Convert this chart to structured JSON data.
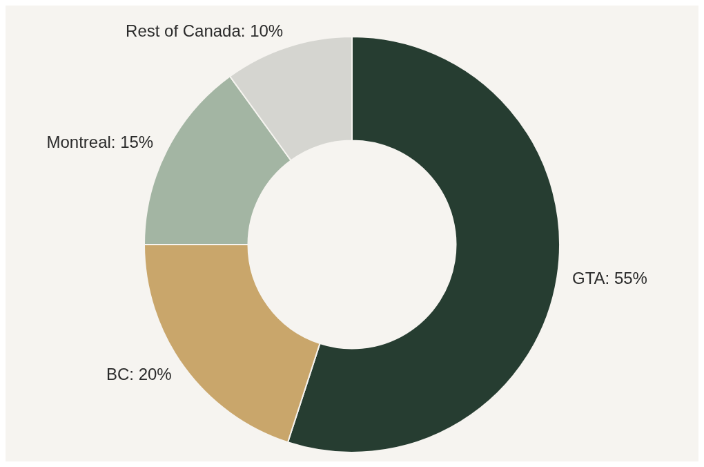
{
  "chart_data": {
    "type": "donut",
    "categories": [
      "GTA",
      "BC",
      "Montreal",
      "Rest of Canada"
    ],
    "values": [
      55,
      20,
      15,
      10
    ],
    "colors": [
      "#263d31",
      "#c9a66b",
      "#a3b5a3",
      "#d5d5d0"
    ],
    "value_labels": [
      "55%",
      "20%",
      "15%",
      "10%"
    ],
    "legend": false
  }
}
